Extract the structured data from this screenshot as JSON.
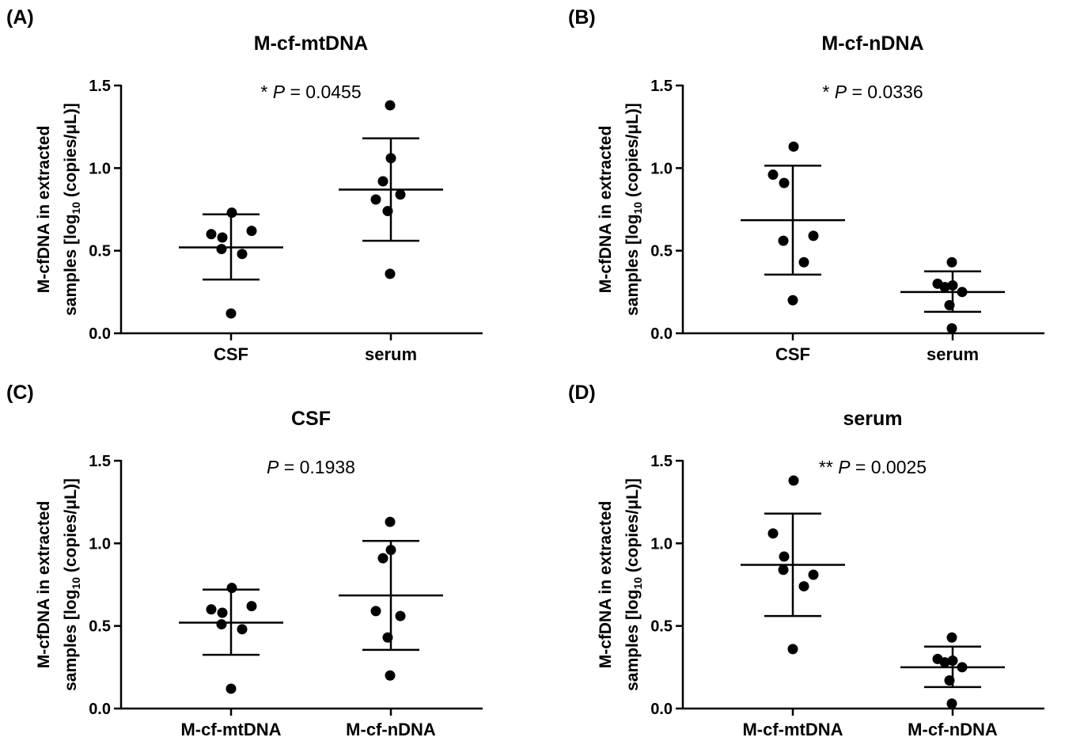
{
  "chart_data": [
    {
      "type": "scatter",
      "panel": "(A)",
      "title": "M-cf-mtDNA",
      "ylabel_line1": "M-cfDNA in extracted",
      "ylabel_line2": "samples [log",
      "ylabel_sub": "10",
      "ylabel_rest": " (copies/μL)]",
      "ylim": [
        0,
        1.5
      ],
      "yticks": [
        "0.0",
        "0.5",
        "1.0",
        "1.5"
      ],
      "annotation": {
        "prefix": "* ",
        "p": "P",
        "rest": " = 0.0455"
      },
      "categories": [
        "CSF",
        "serum"
      ],
      "groups": [
        {
          "points": [
            0.73,
            0.6,
            0.58,
            0.62,
            0.51,
            0.48,
            0.12
          ],
          "mean": 0.52,
          "sd_low": 0.325,
          "sd_high": 0.72
        },
        {
          "points": [
            1.38,
            1.06,
            0.92,
            0.81,
            0.84,
            0.74,
            0.36
          ],
          "mean": 0.87,
          "sd_low": 0.56,
          "sd_high": 1.18
        }
      ]
    },
    {
      "type": "scatter",
      "panel": "(B)",
      "title": "M-cf-nDNA",
      "ylabel_line1": "M-cfDNA in extracted",
      "ylabel_line2": "samples [log",
      "ylabel_sub": "10",
      "ylabel_rest": " (copies/μL)]",
      "ylim": [
        0,
        1.5
      ],
      "yticks": [
        "0.0",
        "0.5",
        "1.0",
        "1.5"
      ],
      "annotation": {
        "prefix": "* ",
        "p": "P",
        "rest": " = 0.0336"
      },
      "categories": [
        "CSF",
        "serum"
      ],
      "groups": [
        {
          "points": [
            1.13,
            0.96,
            0.91,
            0.59,
            0.56,
            0.43,
            0.2
          ],
          "mean": 0.685,
          "sd_low": 0.355,
          "sd_high": 1.015
        },
        {
          "points": [
            0.43,
            0.29,
            0.28,
            0.3,
            0.25,
            0.17,
            0.03
          ],
          "mean": 0.25,
          "sd_low": 0.13,
          "sd_high": 0.375
        }
      ]
    },
    {
      "type": "scatter",
      "panel": "(C)",
      "title": "CSF",
      "ylabel_line1": "M-cfDNA in extracted",
      "ylabel_line2": "samples [log",
      "ylabel_sub": "10",
      "ylabel_rest": " (copies/μL)]",
      "ylim": [
        0,
        1.5
      ],
      "yticks": [
        "0.0",
        "0.5",
        "1.0",
        "1.5"
      ],
      "annotation": {
        "prefix": "",
        "p": "P",
        "rest": " = 0.1938"
      },
      "categories": [
        "M-cf-mtDNA",
        "M-cf-nDNA"
      ],
      "groups": [
        {
          "points": [
            0.73,
            0.6,
            0.58,
            0.62,
            0.51,
            0.48,
            0.12
          ],
          "mean": 0.52,
          "sd_low": 0.325,
          "sd_high": 0.72
        },
        {
          "points": [
            1.13,
            0.96,
            0.91,
            0.59,
            0.56,
            0.43,
            0.2
          ],
          "mean": 0.685,
          "sd_low": 0.355,
          "sd_high": 1.015
        }
      ]
    },
    {
      "type": "scatter",
      "panel": "(D)",
      "title": "serum",
      "ylabel_line1": "M-cfDNA in extracted",
      "ylabel_line2": "samples [log",
      "ylabel_sub": "10",
      "ylabel_rest": " (copies/μL)]",
      "ylim": [
        0,
        1.5
      ],
      "yticks": [
        "0.0",
        "0.5",
        "1.0",
        "1.5"
      ],
      "annotation": {
        "prefix": "** ",
        "p": "P",
        "rest": " = 0.0025"
      },
      "categories": [
        "M-cf-mtDNA",
        "M-cf-nDNA"
      ],
      "groups": [
        {
          "points": [
            1.38,
            1.06,
            0.92,
            0.81,
            0.84,
            0.74,
            0.36
          ],
          "mean": 0.87,
          "sd_low": 0.56,
          "sd_high": 1.18
        },
        {
          "points": [
            0.43,
            0.29,
            0.28,
            0.3,
            0.25,
            0.17,
            0.03
          ],
          "mean": 0.25,
          "sd_low": 0.13,
          "sd_high": 0.375
        }
      ]
    }
  ]
}
